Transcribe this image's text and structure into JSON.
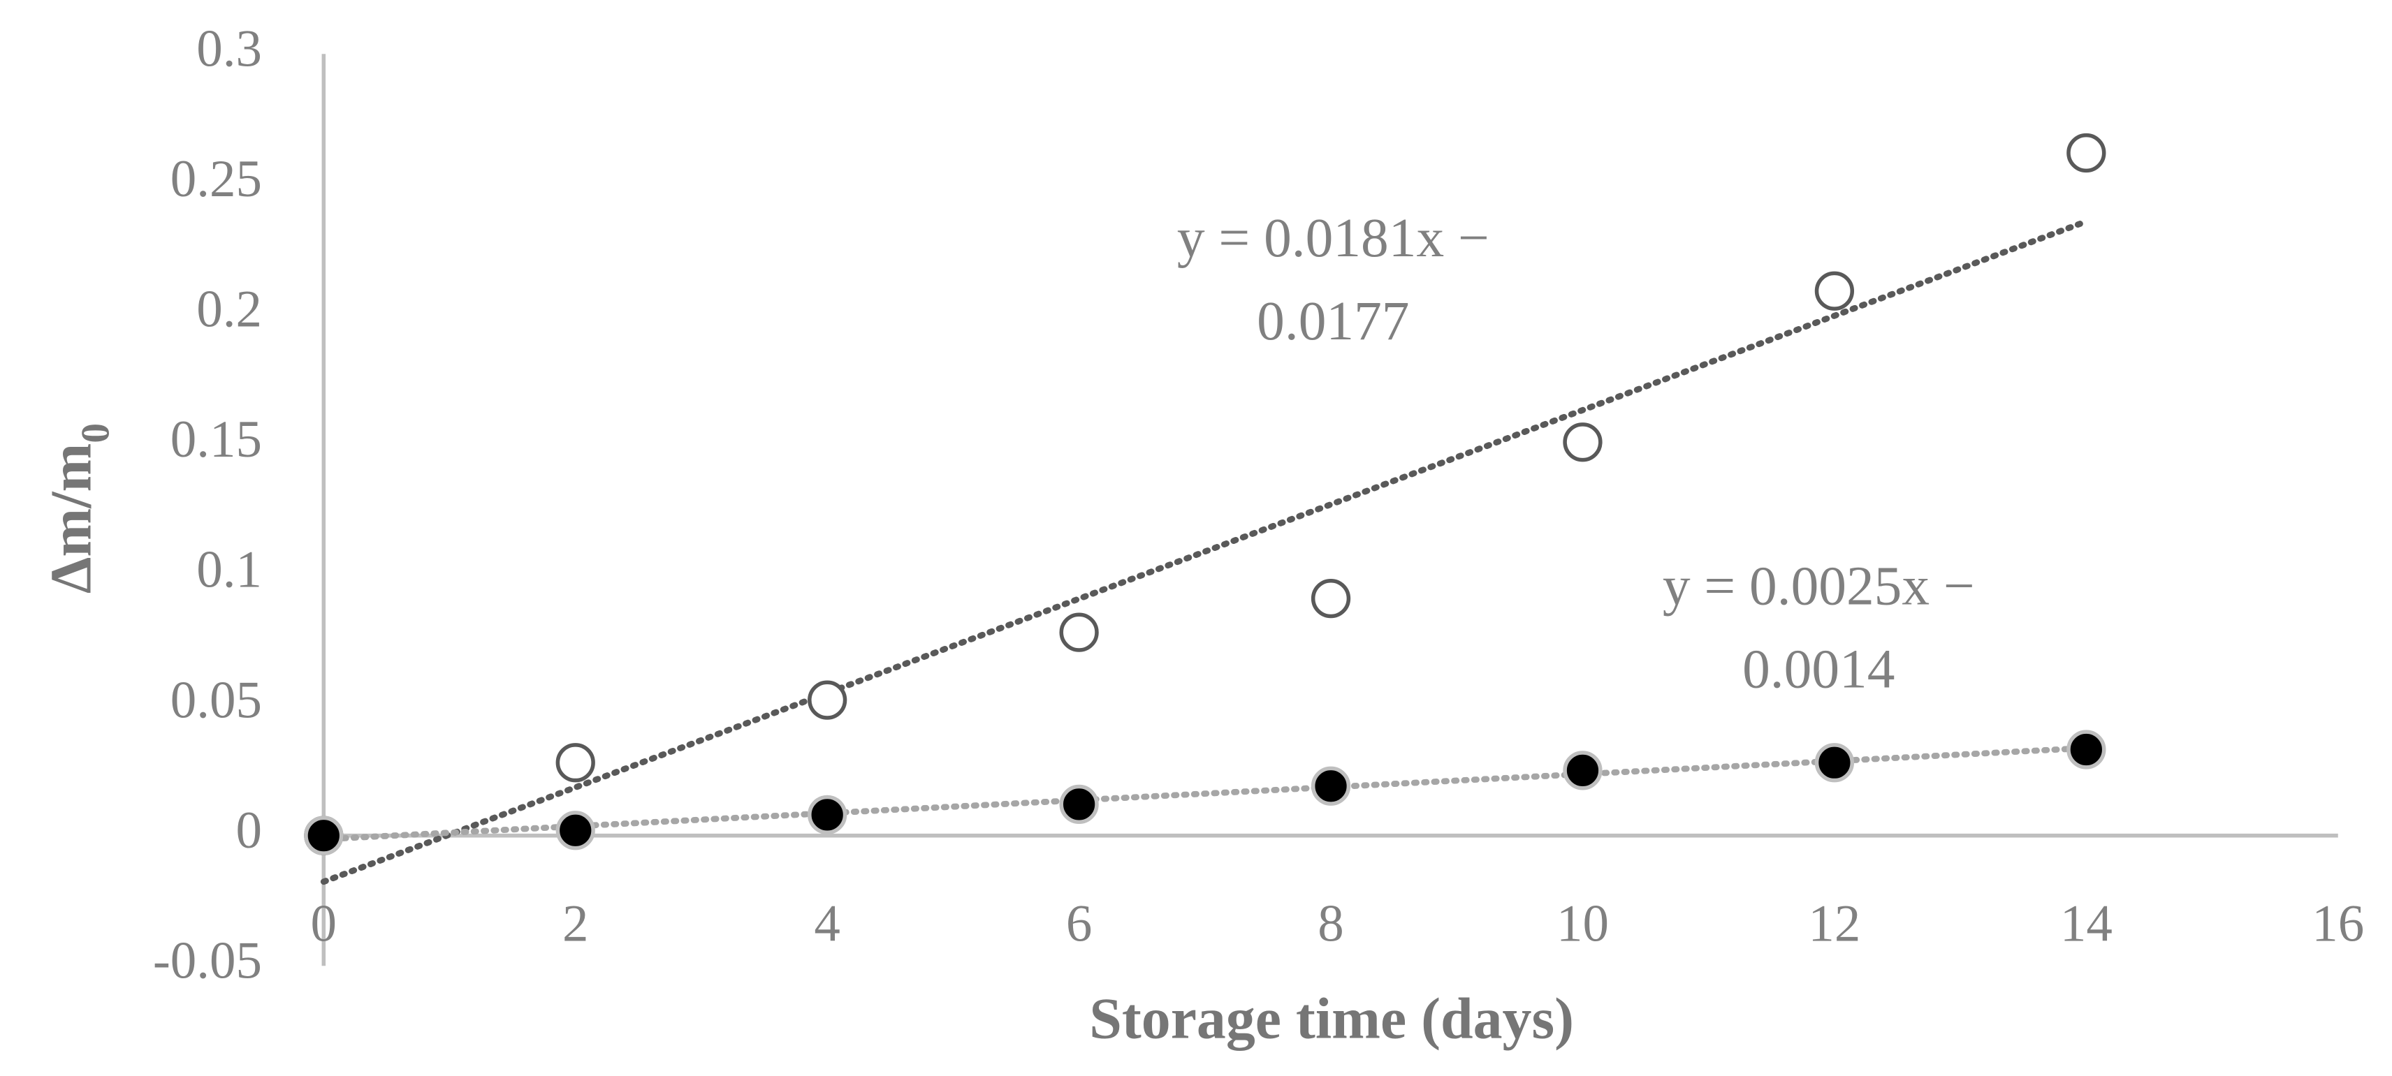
{
  "chart_data": {
    "type": "scatter",
    "x_label": "Storage time (days)",
    "y_label": {
      "text": "Δm/m",
      "subscript": "0"
    },
    "xlim": [
      0,
      16
    ],
    "xticks": [
      0,
      2,
      4,
      6,
      8,
      10,
      12,
      14,
      16
    ],
    "ylim": [
      -0.05,
      0.3
    ],
    "yticks": [
      -0.05,
      0,
      0.05,
      0.1,
      0.15,
      0.2,
      0.25,
      0.3
    ],
    "grid": false,
    "x": [
      0,
      2,
      4,
      6,
      8,
      10,
      12,
      14
    ],
    "series": [
      {
        "marker_fill": "#ffffff",
        "color": "#595959",
        "values": [
          0,
          0.028,
          0.052,
          0.078,
          0.091,
          0.151,
          0.209,
          0.262
        ],
        "trendline": {
          "slope": 0.0181,
          "intercept": -0.0177,
          "color": "#595959"
        },
        "annotation": [
          "y = 0.0181x −",
          "0.0177"
        ]
      },
      {
        "marker_fill": "#000000",
        "color": "#bfbfbf",
        "values": [
          0,
          0.002,
          0.008,
          0.012,
          0.019,
          0.025,
          0.028,
          0.033
        ],
        "trendline": {
          "slope": 0.0025,
          "intercept": -0.0014,
          "color": "#a6a6a6"
        },
        "annotation": [
          "y = 0.0025x −",
          "0.0014"
        ]
      }
    ]
  }
}
